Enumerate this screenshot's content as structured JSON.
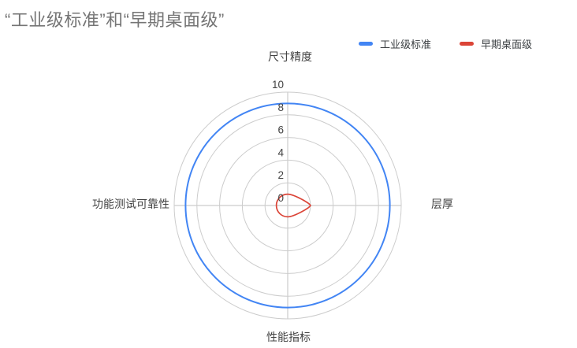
{
  "chart_data": {
    "type": "radar",
    "title": "“工业级标准”和“早期桌面级”",
    "categories": [
      "尺寸精度",
      "层厚",
      "性能指标",
      "功能测试可靠性"
    ],
    "series": [
      {
        "name": "工业级标准",
        "color": "#4285f4",
        "values": [
          9,
          9,
          9,
          9
        ]
      },
      {
        "name": "早期桌面级",
        "color": "#db4437",
        "values": [
          1,
          2,
          1,
          1
        ]
      }
    ],
    "ticks": [
      0,
      2,
      4,
      6,
      8,
      10
    ],
    "rmax": 10,
    "grid": true,
    "legend_position": "top-right",
    "colors": {
      "grid_line": "#cccccc",
      "tick_label": "#424242",
      "category_label": "#424242",
      "title": "#757575",
      "background": "#ffffff"
    }
  }
}
